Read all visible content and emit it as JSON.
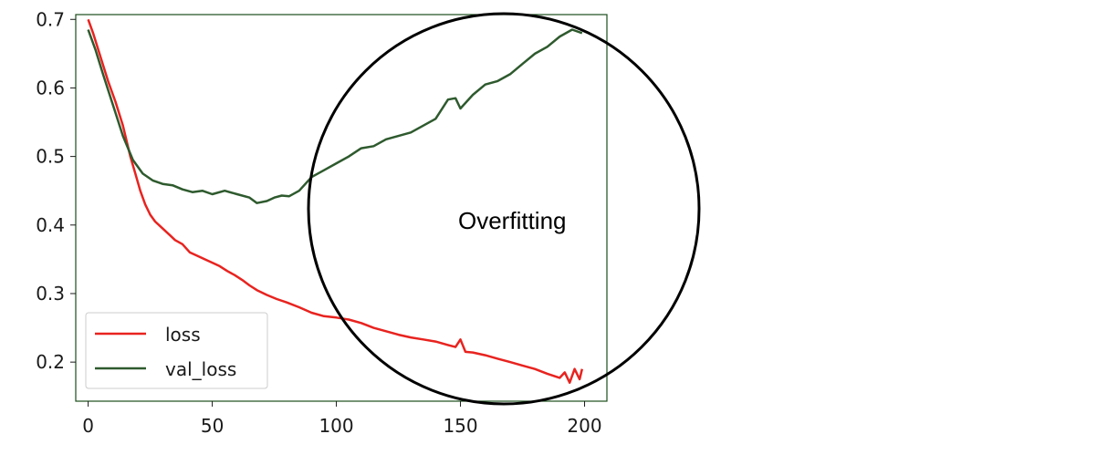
{
  "chart_data": {
    "type": "line",
    "title": "",
    "xlabel": "",
    "ylabel": "",
    "xlim": [
      -5,
      209
    ],
    "ylim": [
      0.143,
      0.707
    ],
    "xticks": [
      0,
      50,
      100,
      150,
      200
    ],
    "yticks": [
      0.2,
      0.3,
      0.4,
      0.5,
      0.6,
      0.7
    ],
    "xtick_labels": [
      "0",
      "50",
      "100",
      "150",
      "200"
    ],
    "ytick_labels": [
      "0.2",
      "0.3",
      "0.4",
      "0.5",
      "0.6",
      "0.7"
    ],
    "grid": false,
    "legend_position": "lower-left",
    "series": [
      {
        "name": "loss",
        "color": "#e8231f",
        "x": [
          0,
          2,
          5,
          8,
          11,
          14,
          17,
          19,
          21,
          23,
          25,
          27,
          30,
          33,
          35,
          38,
          41,
          44,
          47,
          50,
          53,
          56,
          59,
          62,
          65,
          68,
          72,
          76,
          80,
          85,
          90,
          95,
          100,
          105,
          110,
          115,
          120,
          125,
          130,
          135,
          140,
          145,
          148,
          150,
          152,
          155,
          160,
          165,
          170,
          175,
          180,
          185,
          190,
          192,
          194,
          196,
          198,
          199
        ],
        "y": [
          0.7,
          0.68,
          0.645,
          0.61,
          0.58,
          0.545,
          0.5,
          0.475,
          0.45,
          0.43,
          0.415,
          0.405,
          0.395,
          0.385,
          0.378,
          0.372,
          0.36,
          0.355,
          0.35,
          0.345,
          0.34,
          0.333,
          0.327,
          0.32,
          0.312,
          0.305,
          0.298,
          0.292,
          0.287,
          0.28,
          0.272,
          0.267,
          0.265,
          0.262,
          0.257,
          0.25,
          0.245,
          0.24,
          0.236,
          0.233,
          0.23,
          0.225,
          0.222,
          0.233,
          0.215,
          0.214,
          0.21,
          0.205,
          0.2,
          0.195,
          0.19,
          0.183,
          0.177,
          0.185,
          0.17,
          0.19,
          0.175,
          0.19
        ]
      },
      {
        "name": "val_loss",
        "color": "#2e5a2e",
        "x": [
          0,
          3,
          6,
          10,
          14,
          18,
          22,
          26,
          30,
          34,
          38,
          42,
          46,
          50,
          55,
          60,
          65,
          68,
          72,
          75,
          78,
          81,
          85,
          90,
          95,
          100,
          105,
          110,
          115,
          120,
          125,
          130,
          135,
          140,
          145,
          148,
          150,
          155,
          160,
          165,
          170,
          175,
          180,
          185,
          190,
          195,
          199
        ],
        "y": [
          0.685,
          0.655,
          0.62,
          0.575,
          0.53,
          0.495,
          0.475,
          0.465,
          0.46,
          0.458,
          0.452,
          0.448,
          0.45,
          0.445,
          0.45,
          0.445,
          0.44,
          0.432,
          0.435,
          0.44,
          0.443,
          0.442,
          0.45,
          0.47,
          0.48,
          0.49,
          0.5,
          0.512,
          0.515,
          0.525,
          0.53,
          0.535,
          0.545,
          0.555,
          0.583,
          0.585,
          0.57,
          0.59,
          0.605,
          0.61,
          0.62,
          0.635,
          0.65,
          0.66,
          0.675,
          0.685,
          0.68
        ]
      }
    ],
    "annotation": {
      "text": "Overfitting",
      "shape": "circle",
      "stroke": "#000000"
    }
  }
}
